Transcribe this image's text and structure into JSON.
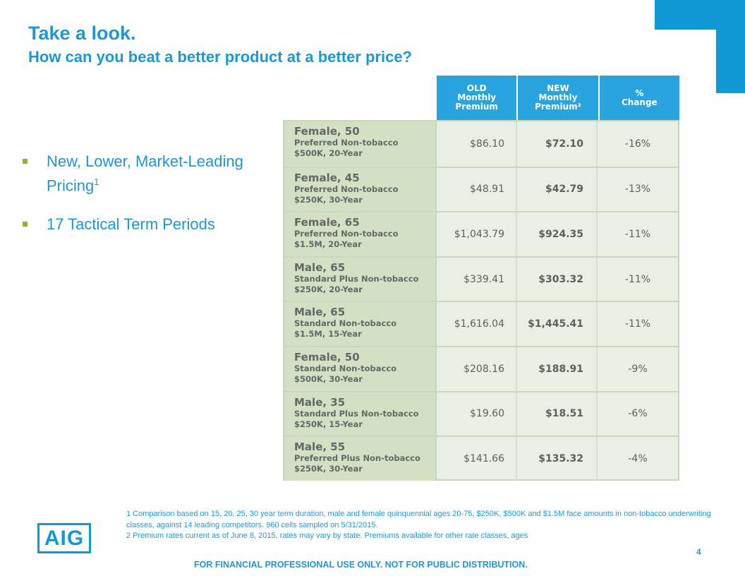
{
  "title": "Take a look.",
  "subtitle": "How can you beat a better product at a better price?",
  "bullets": [
    {
      "text": "New, Lower, Market-Leading Pricing",
      "sup": "1"
    },
    {
      "text": "17 Tactical Term Periods"
    }
  ],
  "table": {
    "headers": [
      "OLD\nMonthly\nPremium",
      "NEW\nMonthly\nPremium²",
      "%\nChange"
    ],
    "rows": [
      {
        "who": "Female, 50",
        "cls": "Preferred Non-tobacco",
        "amt": "$500K, 20-Year",
        "old": "$86.10",
        "new": "$72.10",
        "pct": "-16%"
      },
      {
        "who": "Female, 45",
        "cls": "Preferred Non-tobacco",
        "amt": "$250K, 30-Year",
        "old": "$48.91",
        "new": "$42.79",
        "pct": "-13%"
      },
      {
        "who": "Female, 65",
        "cls": "Preferred Non-tobacco",
        "amt": "$1.5M, 20-Year",
        "old": "$1,043.79",
        "new": "$924.35",
        "pct": "-11%"
      },
      {
        "who": "Male, 65",
        "cls": "Standard Plus Non-tobacco",
        "amt": "$250K, 20-Year",
        "old": "$339.41",
        "new": "$303.32",
        "pct": "-11%"
      },
      {
        "who": "Male, 65",
        "cls": "Standard  Non-tobacco",
        "amt": "$1.5M, 15-Year",
        "old": "$1,616.04",
        "new": "$1,445.41",
        "pct": "-11%"
      },
      {
        "who": "Female, 50",
        "cls": "Standard Non-tobacco",
        "amt": "$500K, 30-Year",
        "old": "$208.16",
        "new": "$188.91",
        "pct": "-9%"
      },
      {
        "who": "Male, 35",
        "cls": "Standard Plus Non-tobacco",
        "amt": "$250K, 15-Year",
        "old": "$19.60",
        "new": "$18.51",
        "pct": "-6%"
      },
      {
        "who": "Male, 55",
        "cls": "Preferred Plus Non-tobacco",
        "amt": "$250K, 30-Year",
        "old": "$141.66",
        "new": "$135.32",
        "pct": "-4%"
      }
    ]
  },
  "footnotes": [
    "1 Comparison based on 15, 20, 25, 30 year term duration, male and female quinquennial ages 20-75, $250K, $500K and $1.5M face amounts in non-tobacco underwriting classes, against 14 leading competitors. 960 cells sampled on 5/31/2015.",
    "2 Premium rates current as of June 8, 2015, rates may vary by state. Premiums available for other rate classes, ages"
  ],
  "page_number": "4",
  "disclaimer": "FOR FINANCIAL PROFESSIONAL USE ONLY. NOT FOR PUBLIC DISTRIBUTION.",
  "logo_text": "AIG",
  "colors": {
    "brand_blue": "#1b98d5",
    "header_blue": "#29a4df",
    "bullet_green": "#8ab33f",
    "row_label_green": "#d3e0c4"
  }
}
